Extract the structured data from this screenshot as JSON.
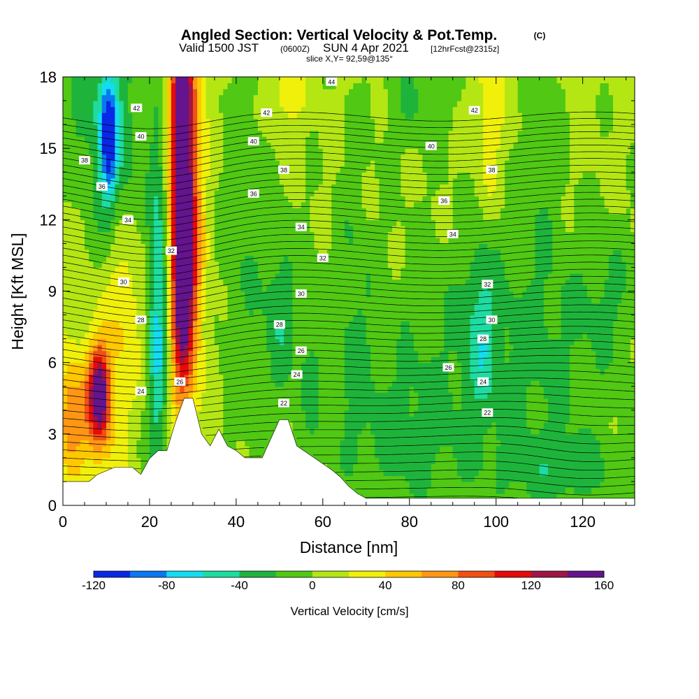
{
  "title": {
    "main": "Angled Section: Vertical Velocity & Pot.Temp.",
    "main_suffix": "(C)",
    "sub_a": "Valid 1500 JST",
    "sub_b": "(0600Z)",
    "sub_c": "SUN 4 Apr 2021",
    "sub_d": "[12hrFcst@2315z]",
    "slice": "slice X,Y= 92,59@135°"
  },
  "chart_data": {
    "type": "heatmap",
    "xlabel": "Distance [nm]",
    "ylabel": "Height [Kft MSL]",
    "xlim": [
      0,
      132
    ],
    "ylim": [
      0,
      18
    ],
    "x_ticks": [
      0,
      20,
      40,
      60,
      80,
      100,
      120
    ],
    "y_ticks": [
      0,
      3,
      6,
      9,
      12,
      15,
      18
    ],
    "colorbar": {
      "title": "Vertical Velocity [cm/s]",
      "range": [
        -120,
        160
      ],
      "step": 20,
      "tick_labels": [
        -120,
        -80,
        -40,
        0,
        40,
        80,
        120,
        160
      ],
      "colors": [
        "#0a28e6",
        "#0a78f0",
        "#14dcf0",
        "#1edca0",
        "#1eb43c",
        "#50c814",
        "#b4e614",
        "#f0f00a",
        "#ffc800",
        "#ff9614",
        "#f05014",
        "#e60a0a",
        "#a01446",
        "#64148c"
      ]
    },
    "terrain": [
      [
        0,
        1.0
      ],
      [
        6,
        1.0
      ],
      [
        8,
        1.3
      ],
      [
        12,
        1.6
      ],
      [
        16,
        1.6
      ],
      [
        18,
        1.3
      ],
      [
        21,
        2.3
      ],
      [
        24,
        2.3
      ],
      [
        26,
        3.5
      ],
      [
        28,
        4.5
      ],
      [
        30,
        4.5
      ],
      [
        32,
        3.0
      ],
      [
        34,
        2.5
      ],
      [
        36,
        3.2
      ],
      [
        38,
        2.5
      ],
      [
        40,
        2.3
      ],
      [
        42,
        2.0
      ],
      [
        46,
        2.0
      ],
      [
        50,
        3.6
      ],
      [
        52,
        3.6
      ],
      [
        54,
        2.5
      ],
      [
        58,
        2.0
      ],
      [
        62,
        1.5
      ],
      [
        64,
        1.2
      ],
      [
        66,
        0.8
      ],
      [
        68,
        0.5
      ],
      [
        70,
        0.3
      ],
      [
        132,
        0.3
      ]
    ],
    "background_value": 5,
    "blobs": [
      {
        "x": 27.5,
        "y": 10.0,
        "sx": 2.0,
        "sy": 4.2,
        "v": 165
      },
      {
        "x": 27.5,
        "y": 14.5,
        "sx": 1.5,
        "sy": 3.0,
        "v": 95
      },
      {
        "x": 27.5,
        "y": 17.5,
        "sx": 2.5,
        "sy": 1.5,
        "v": 70
      },
      {
        "x": 30.5,
        "y": 12.0,
        "sx": 2.0,
        "sy": 5.0,
        "v": 45
      },
      {
        "x": 8.5,
        "y": 4.8,
        "sx": 1.6,
        "sy": 1.3,
        "v": 125
      },
      {
        "x": 7.0,
        "y": 4.0,
        "sx": 4.5,
        "sy": 2.2,
        "v": 55
      },
      {
        "x": 14.0,
        "y": 8.5,
        "sx": 2.8,
        "sy": 2.5,
        "v": 35
      },
      {
        "x": 22.0,
        "y": 8.0,
        "sx": 1.8,
        "sy": 5.5,
        "v": -70
      },
      {
        "x": 11.5,
        "y": 15.5,
        "sx": 4.0,
        "sy": 3.0,
        "v": -55
      },
      {
        "x": 10.5,
        "y": 15.5,
        "sx": 1.2,
        "sy": 1.8,
        "v": -85
      },
      {
        "x": 52.0,
        "y": 17.5,
        "sx": 2.5,
        "sy": 1.2,
        "v": 35
      },
      {
        "x": 50.0,
        "y": 8.0,
        "sx": 2.5,
        "sy": 3.0,
        "v": -35
      },
      {
        "x": 42.0,
        "y": 10.5,
        "sx": 4.0,
        "sy": 7.0,
        "v": -22
      },
      {
        "x": 96.5,
        "y": 7.5,
        "sx": 2.5,
        "sy": 2.5,
        "v": -35
      },
      {
        "x": 98.5,
        "y": 16.5,
        "sx": 2.0,
        "sy": 2.5,
        "v": 35
      },
      {
        "x": 90.0,
        "y": 6.0,
        "sx": 18.0,
        "sy": 4.0,
        "v": -22
      },
      {
        "x": 112.0,
        "y": 6.5,
        "sx": 12.0,
        "sy": 3.5,
        "v": -18
      },
      {
        "x": 126.0,
        "y": 9.0,
        "sx": 5.0,
        "sy": 2.0,
        "v": -20
      },
      {
        "x": 67.0,
        "y": 8.0,
        "sx": 3.0,
        "sy": 5.0,
        "v": -22
      },
      {
        "x": 78.0,
        "y": 2.5,
        "sx": 8.0,
        "sy": 2.0,
        "v": -22
      },
      {
        "x": 115.0,
        "y": 1.4,
        "sx": 12.0,
        "sy": 1.2,
        "v": -28
      },
      {
        "x": 4.0,
        "y": 17.0,
        "sx": 3.0,
        "sy": 2.0,
        "v": -25
      },
      {
        "x": 82.0,
        "y": 17.0,
        "sx": 6.0,
        "sy": 1.5,
        "v": -25
      },
      {
        "x": 111.0,
        "y": 15.5,
        "sx": 3.0,
        "sy": 4.0,
        "v": -20
      },
      {
        "x": 57.0,
        "y": 6.0,
        "sx": 2.5,
        "sy": 3.5,
        "v": -25
      },
      {
        "x": 1.5,
        "y": 3.5,
        "sx": 1.8,
        "sy": 1.5,
        "v": 55
      }
    ],
    "contour_labels": [
      {
        "x": 62,
        "y": 17.8,
        "text": "44"
      },
      {
        "x": 17,
        "y": 16.7,
        "text": "42"
      },
      {
        "x": 47,
        "y": 16.5,
        "text": "42"
      },
      {
        "x": 95,
        "y": 16.6,
        "text": "42"
      },
      {
        "x": 18,
        "y": 15.5,
        "text": "40"
      },
      {
        "x": 44,
        "y": 15.3,
        "text": "40"
      },
      {
        "x": 85,
        "y": 15.1,
        "text": "40"
      },
      {
        "x": 5,
        "y": 14.5,
        "text": "38"
      },
      {
        "x": 51,
        "y": 14.1,
        "text": "38"
      },
      {
        "x": 99,
        "y": 14.1,
        "text": "38"
      },
      {
        "x": 9,
        "y": 13.4,
        "text": "36"
      },
      {
        "x": 44,
        "y": 13.1,
        "text": "36"
      },
      {
        "x": 88,
        "y": 12.8,
        "text": "36"
      },
      {
        "x": 15,
        "y": 12.0,
        "text": "34"
      },
      {
        "x": 55,
        "y": 11.7,
        "text": "34"
      },
      {
        "x": 90,
        "y": 11.4,
        "text": "34"
      },
      {
        "x": 25,
        "y": 10.7,
        "text": "32"
      },
      {
        "x": 60,
        "y": 10.4,
        "text": "32"
      },
      {
        "x": 98,
        "y": 9.3,
        "text": "32"
      },
      {
        "x": 14,
        "y": 9.4,
        "text": "30"
      },
      {
        "x": 55,
        "y": 8.9,
        "text": "30"
      },
      {
        "x": 99,
        "y": 7.8,
        "text": "30"
      },
      {
        "x": 18,
        "y": 7.8,
        "text": "28"
      },
      {
        "x": 50,
        "y": 7.6,
        "text": "28"
      },
      {
        "x": 97,
        "y": 7.0,
        "text": "28"
      },
      {
        "x": 55,
        "y": 6.5,
        "text": "26"
      },
      {
        "x": 27,
        "y": 5.2,
        "text": "26"
      },
      {
        "x": 89,
        "y": 5.8,
        "text": "26"
      },
      {
        "x": 54,
        "y": 5.5,
        "text": "24"
      },
      {
        "x": 18,
        "y": 4.8,
        "text": "24"
      },
      {
        "x": 97,
        "y": 5.2,
        "text": "24"
      },
      {
        "x": 51,
        "y": 4.3,
        "text": "22"
      },
      {
        "x": 98,
        "y": 3.9,
        "text": "22"
      }
    ]
  }
}
